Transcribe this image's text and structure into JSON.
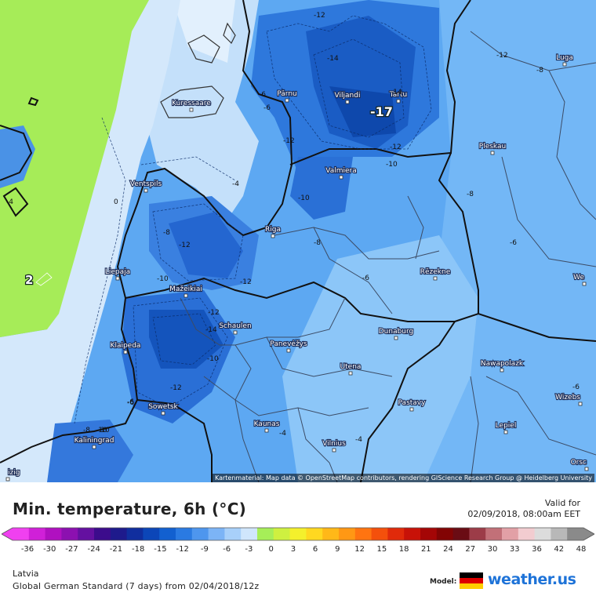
{
  "map": {
    "attribution": "Kartenmaterial: Map data © OpenStreetMap contributors, rendering GIScience Research Group @ Heidelberg University",
    "cities": [
      {
        "name": "Pärnu"
      },
      {
        "name": "Viljandi"
      },
      {
        "name": "Tartu"
      },
      {
        "name": "Luga"
      },
      {
        "name": "Kuressaare"
      },
      {
        "name": "Pleskau"
      },
      {
        "name": "Valmiera"
      },
      {
        "name": "Ventspils"
      },
      {
        "name": "Riga"
      },
      {
        "name": "Liepaja"
      },
      {
        "name": "Rēzekne"
      },
      {
        "name": "Mažeikiai"
      },
      {
        "name": "Schaulen"
      },
      {
        "name": "Klaipeda"
      },
      {
        "name": "Panevėžys"
      },
      {
        "name": "Dunaburg"
      },
      {
        "name": "Utena"
      },
      {
        "name": "Nawapolazk"
      },
      {
        "name": "Sowetsk"
      },
      {
        "name": "Pastavy"
      },
      {
        "name": "Wizebs"
      },
      {
        "name": "Kaunas"
      },
      {
        "name": "Lepiel"
      },
      {
        "name": "Kaliningrad"
      },
      {
        "name": "Vilnius"
      },
      {
        "name": "We"
      },
      {
        "name": "Orsc"
      },
      {
        "name": "izig"
      }
    ],
    "isotherm_labels": [
      "-12",
      "-14",
      "-14",
      "-12",
      "-10",
      "-12",
      "-8",
      "-6",
      "-12",
      "-10",
      "-4",
      "-4",
      "0",
      "-8",
      "-8",
      "-12",
      "-10",
      "-6",
      "-12",
      "-8",
      "-12",
      "-10",
      "-6",
      "-6",
      "-14",
      "-10",
      "-6",
      "-8",
      "-10",
      "-4",
      "-4",
      "-6",
      "-6",
      "-12"
    ],
    "highlight_value": "-17",
    "sea_value": "2"
  },
  "panel": {
    "title": "Min. temperature, 6h (°C)",
    "valid_label": "Valid for",
    "valid_value": "02/09/2018, 08:00am EET",
    "region": "Latvia",
    "model_run": "Global German Standard (7 days) from 02/04/2018/12z",
    "model_label": "Model:",
    "brand": "weather.us"
  },
  "colorbar": {
    "ticks": [
      "-36",
      "-30",
      "-27",
      "-24",
      "-21",
      "-18",
      "-15",
      "-12",
      "-9",
      "-6",
      "-3",
      "0",
      "3",
      "6",
      "9",
      "12",
      "15",
      "18",
      "21",
      "24",
      "27",
      "30",
      "33",
      "36",
      "42",
      "48"
    ],
    "colors": [
      "#f040f0",
      "#d020d8",
      "#b010c0",
      "#8c10b0",
      "#6410a0",
      "#3c0c8c",
      "#1e1a8c",
      "#102e9e",
      "#0c46b8",
      "#1260d0",
      "#2a7ae2",
      "#4e96ee",
      "#7cb4f6",
      "#a8d0fa",
      "#d0e6fc",
      "#a6ee58",
      "#cef040",
      "#f4f02c",
      "#ffd820",
      "#ffb818",
      "#ff9814",
      "#ff7410",
      "#f4500c",
      "#e02a0a",
      "#c81208",
      "#a40606",
      "#820404",
      "#6a0c14",
      "#9c3c48",
      "#c27078",
      "#e2a0a6",
      "#f2ccd0",
      "#dcdcdc",
      "#b8b8b8",
      "#8a8a8a"
    ]
  }
}
